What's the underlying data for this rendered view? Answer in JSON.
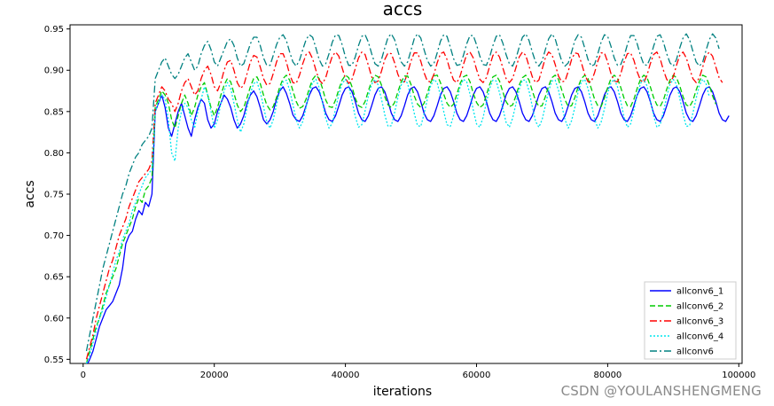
{
  "watermark": "CSDN @YOULANSHENGMENG",
  "chart_data": {
    "type": "line",
    "title": "accs",
    "xlabel": "iterations",
    "ylabel": "accs",
    "xlim": [
      -2000,
      100500
    ],
    "ylim": [
      0.545,
      0.955
    ],
    "xticks": [
      0,
      20000,
      40000,
      60000,
      80000,
      100000
    ],
    "yticks": [
      0.55,
      0.6,
      0.65,
      0.7,
      0.75,
      0.8,
      0.85,
      0.9,
      0.95
    ],
    "ytick_labels": [
      "0.55",
      "0.60",
      "0.65",
      "0.70",
      "0.75",
      "0.80",
      "0.85",
      "0.90",
      "0.95"
    ],
    "grid": false,
    "legend_position": "lower-right",
    "x_step": 500,
    "x_start": 500,
    "series": [
      {
        "name": "allconv6_1",
        "color": "#0000ff",
        "dash": "solid",
        "values": [
          0.542,
          0.55,
          0.56,
          0.575,
          0.59,
          0.6,
          0.61,
          0.615,
          0.62,
          0.63,
          0.64,
          0.66,
          0.69,
          0.7,
          0.705,
          0.72,
          0.73,
          0.725,
          0.74,
          0.735,
          0.75,
          0.85,
          0.86,
          0.87,
          0.855,
          0.83,
          0.82,
          0.835,
          0.85,
          0.86,
          0.845,
          0.83,
          0.82,
          0.84,
          0.855,
          0.865,
          0.86,
          0.84,
          0.83,
          0.835,
          0.85,
          0.86,
          0.87,
          0.865,
          0.855,
          0.84,
          0.83,
          0.835,
          0.845,
          0.86,
          0.87,
          0.875,
          0.868,
          0.855,
          0.84,
          0.835,
          0.84,
          0.85,
          0.865,
          0.875,
          0.88,
          0.872,
          0.86,
          0.846,
          0.84,
          0.838,
          0.845,
          0.857,
          0.87,
          0.878,
          0.88,
          0.874,
          0.862,
          0.848,
          0.84,
          0.838,
          0.845,
          0.857,
          0.87,
          0.878,
          0.88,
          0.874,
          0.862,
          0.848,
          0.84,
          0.838,
          0.845,
          0.857,
          0.87,
          0.878,
          0.88,
          0.874,
          0.862,
          0.848,
          0.84,
          0.838,
          0.845,
          0.857,
          0.87,
          0.878,
          0.88,
          0.874,
          0.862,
          0.848,
          0.84,
          0.838,
          0.845,
          0.857,
          0.87,
          0.878,
          0.88,
          0.874,
          0.862,
          0.848,
          0.84,
          0.838,
          0.845,
          0.857,
          0.87,
          0.878,
          0.88,
          0.874,
          0.862,
          0.848,
          0.84,
          0.838,
          0.845,
          0.857,
          0.87,
          0.878,
          0.88,
          0.874,
          0.862,
          0.848,
          0.84,
          0.838,
          0.845,
          0.857,
          0.87,
          0.878,
          0.88,
          0.874,
          0.862,
          0.848,
          0.84,
          0.838,
          0.845,
          0.857,
          0.87,
          0.878,
          0.88,
          0.874,
          0.862,
          0.848,
          0.84,
          0.838,
          0.845,
          0.857,
          0.87,
          0.878,
          0.88,
          0.874,
          0.862,
          0.848,
          0.84,
          0.838,
          0.845,
          0.857,
          0.87,
          0.878,
          0.88,
          0.874,
          0.862,
          0.848,
          0.84,
          0.838,
          0.845,
          0.857,
          0.87,
          0.878,
          0.88,
          0.874,
          0.862,
          0.848,
          0.84,
          0.838,
          0.845,
          0.857,
          0.87,
          0.878,
          0.88,
          0.874,
          0.862,
          0.848,
          0.84,
          0.838,
          0.845
        ]
      },
      {
        "name": "allconv6_2",
        "color": "#00cc00",
        "dash": "6,3",
        "values": [
          0.545,
          0.56,
          0.575,
          0.59,
          0.6,
          0.615,
          0.63,
          0.64,
          0.65,
          0.66,
          0.675,
          0.69,
          0.7,
          0.71,
          0.72,
          0.735,
          0.745,
          0.74,
          0.755,
          0.76,
          0.77,
          0.855,
          0.865,
          0.875,
          0.87,
          0.86,
          0.84,
          0.83,
          0.845,
          0.86,
          0.87,
          0.86,
          0.845,
          0.855,
          0.87,
          0.88,
          0.885,
          0.87,
          0.855,
          0.845,
          0.855,
          0.87,
          0.882,
          0.89,
          0.886,
          0.872,
          0.858,
          0.85,
          0.855,
          0.867,
          0.88,
          0.89,
          0.892,
          0.884,
          0.87,
          0.858,
          0.852,
          0.856,
          0.867,
          0.88,
          0.89,
          0.894,
          0.888,
          0.875,
          0.862,
          0.854,
          0.856,
          0.865,
          0.878,
          0.889,
          0.894,
          0.89,
          0.878,
          0.864,
          0.856,
          0.855,
          0.864,
          0.877,
          0.888,
          0.894,
          0.891,
          0.88,
          0.866,
          0.857,
          0.855,
          0.862,
          0.875,
          0.887,
          0.894,
          0.892,
          0.882,
          0.868,
          0.858,
          0.855,
          0.861,
          0.874,
          0.886,
          0.893,
          0.893,
          0.883,
          0.869,
          0.859,
          0.855,
          0.86,
          0.872,
          0.885,
          0.893,
          0.894,
          0.885,
          0.871,
          0.86,
          0.855,
          0.859,
          0.871,
          0.884,
          0.892,
          0.894,
          0.886,
          0.872,
          0.861,
          0.855,
          0.858,
          0.87,
          0.883,
          0.892,
          0.894,
          0.887,
          0.874,
          0.862,
          0.856,
          0.858,
          0.869,
          0.882,
          0.891,
          0.894,
          0.888,
          0.875,
          0.863,
          0.856,
          0.857,
          0.868,
          0.881,
          0.891,
          0.894,
          0.889,
          0.876,
          0.864,
          0.856,
          0.857,
          0.867,
          0.88,
          0.89,
          0.894,
          0.89,
          0.878,
          0.865,
          0.857,
          0.856,
          0.866,
          0.879,
          0.89,
          0.894,
          0.89,
          0.879,
          0.866,
          0.857,
          0.856,
          0.865,
          0.878,
          0.889,
          0.894,
          0.891,
          0.88,
          0.867,
          0.858,
          0.856,
          0.864,
          0.877,
          0.888,
          0.894,
          0.891,
          0.881,
          0.868,
          0.858,
          0.856,
          0.863,
          0.876,
          0.887,
          0.894,
          0.892,
          0.882,
          0.869,
          0.859
        ]
      },
      {
        "name": "allconv6_3",
        "color": "#ff0000",
        "dash": "8,3,2,3",
        "values": [
          0.55,
          0.565,
          0.58,
          0.6,
          0.615,
          0.63,
          0.645,
          0.66,
          0.67,
          0.685,
          0.7,
          0.71,
          0.72,
          0.735,
          0.745,
          0.755,
          0.765,
          0.77,
          0.775,
          0.78,
          0.79,
          0.86,
          0.87,
          0.88,
          0.875,
          0.865,
          0.86,
          0.85,
          0.86,
          0.875,
          0.885,
          0.89,
          0.88,
          0.87,
          0.875,
          0.89,
          0.9,
          0.905,
          0.895,
          0.88,
          0.875,
          0.885,
          0.9,
          0.91,
          0.912,
          0.9,
          0.885,
          0.878,
          0.882,
          0.896,
          0.91,
          0.918,
          0.916,
          0.904,
          0.89,
          0.882,
          0.884,
          0.896,
          0.91,
          0.92,
          0.92,
          0.91,
          0.895,
          0.885,
          0.884,
          0.894,
          0.908,
          0.919,
          0.922,
          0.914,
          0.9,
          0.888,
          0.884,
          0.891,
          0.905,
          0.917,
          0.922,
          0.917,
          0.903,
          0.89,
          0.884,
          0.889,
          0.902,
          0.915,
          0.922,
          0.919,
          0.906,
          0.892,
          0.885,
          0.887,
          0.899,
          0.913,
          0.921,
          0.92,
          0.909,
          0.895,
          0.886,
          0.886,
          0.897,
          0.911,
          0.921,
          0.921,
          0.911,
          0.897,
          0.887,
          0.886,
          0.895,
          0.909,
          0.92,
          0.922,
          0.913,
          0.899,
          0.888,
          0.885,
          0.893,
          0.907,
          0.919,
          0.922,
          0.915,
          0.901,
          0.889,
          0.885,
          0.891,
          0.905,
          0.918,
          0.922,
          0.916,
          0.903,
          0.89,
          0.885,
          0.89,
          0.903,
          0.916,
          0.922,
          0.918,
          0.905,
          0.892,
          0.885,
          0.888,
          0.901,
          0.915,
          0.922,
          0.919,
          0.907,
          0.893,
          0.886,
          0.887,
          0.899,
          0.913,
          0.921,
          0.92,
          0.909,
          0.895,
          0.886,
          0.886,
          0.897,
          0.911,
          0.921,
          0.921,
          0.91,
          0.896,
          0.887,
          0.886,
          0.896,
          0.91,
          0.92,
          0.921,
          0.912,
          0.898,
          0.888,
          0.885,
          0.894,
          0.908,
          0.919,
          0.922,
          0.914,
          0.9,
          0.889,
          0.885,
          0.892,
          0.906,
          0.918,
          0.922,
          0.915,
          0.902,
          0.89,
          0.885,
          0.891,
          0.904,
          0.917,
          0.922,
          0.917,
          0.904,
          0.891,
          0.885
        ]
      },
      {
        "name": "allconv6_4",
        "color": "#00e5ee",
        "dash": "2,2",
        "values": [
          0.545,
          0.555,
          0.57,
          0.585,
          0.6,
          0.61,
          0.625,
          0.64,
          0.655,
          0.67,
          0.68,
          0.695,
          0.705,
          0.715,
          0.73,
          0.74,
          0.75,
          0.76,
          0.77,
          0.775,
          0.78,
          0.85,
          0.86,
          0.87,
          0.865,
          0.84,
          0.8,
          0.79,
          0.83,
          0.85,
          0.86,
          0.855,
          0.84,
          0.83,
          0.85,
          0.865,
          0.88,
          0.87,
          0.85,
          0.83,
          0.84,
          0.86,
          0.875,
          0.885,
          0.878,
          0.86,
          0.84,
          0.825,
          0.835,
          0.855,
          0.872,
          0.884,
          0.886,
          0.874,
          0.856,
          0.838,
          0.83,
          0.84,
          0.858,
          0.875,
          0.886,
          0.888,
          0.876,
          0.858,
          0.84,
          0.83,
          0.838,
          0.855,
          0.873,
          0.885,
          0.889,
          0.879,
          0.861,
          0.842,
          0.83,
          0.836,
          0.853,
          0.871,
          0.884,
          0.889,
          0.881,
          0.863,
          0.844,
          0.831,
          0.834,
          0.851,
          0.869,
          0.883,
          0.889,
          0.882,
          0.865,
          0.846,
          0.832,
          0.833,
          0.849,
          0.867,
          0.882,
          0.889,
          0.884,
          0.867,
          0.848,
          0.833,
          0.832,
          0.847,
          0.865,
          0.881,
          0.889,
          0.885,
          0.869,
          0.85,
          0.834,
          0.832,
          0.845,
          0.863,
          0.88,
          0.889,
          0.886,
          0.871,
          0.852,
          0.835,
          0.831,
          0.843,
          0.861,
          0.878,
          0.888,
          0.887,
          0.873,
          0.854,
          0.837,
          0.831,
          0.842,
          0.859,
          0.877,
          0.888,
          0.888,
          0.875,
          0.856,
          0.838,
          0.831,
          0.84,
          0.857,
          0.875,
          0.887,
          0.888,
          0.876,
          0.858,
          0.84,
          0.83,
          0.839,
          0.855,
          0.874,
          0.886,
          0.889,
          0.878,
          0.86,
          0.841,
          0.83,
          0.837,
          0.853,
          0.872,
          0.885,
          0.889,
          0.88,
          0.862,
          0.843,
          0.831,
          0.835,
          0.852,
          0.87,
          0.884,
          0.889,
          0.881,
          0.864,
          0.845,
          0.831,
          0.834,
          0.85,
          0.868,
          0.883,
          0.889,
          0.883,
          0.866,
          0.847,
          0.832,
          0.833,
          0.848,
          0.866,
          0.882,
          0.889,
          0.884,
          0.868
        ]
      },
      {
        "name": "allconv6",
        "color": "#008080",
        "dash": "8,3,2,3",
        "values": [
          0.56,
          0.58,
          0.6,
          0.62,
          0.64,
          0.66,
          0.675,
          0.69,
          0.705,
          0.72,
          0.735,
          0.75,
          0.76,
          0.775,
          0.785,
          0.795,
          0.8,
          0.81,
          0.815,
          0.82,
          0.83,
          0.89,
          0.9,
          0.91,
          0.915,
          0.905,
          0.895,
          0.89,
          0.895,
          0.905,
          0.915,
          0.92,
          0.91,
          0.9,
          0.905,
          0.92,
          0.93,
          0.935,
          0.925,
          0.91,
          0.905,
          0.915,
          0.925,
          0.935,
          0.938,
          0.93,
          0.915,
          0.905,
          0.908,
          0.92,
          0.932,
          0.94,
          0.94,
          0.93,
          0.915,
          0.906,
          0.906,
          0.918,
          0.931,
          0.94,
          0.943,
          0.936,
          0.922,
          0.91,
          0.905,
          0.912,
          0.925,
          0.937,
          0.943,
          0.94,
          0.927,
          0.913,
          0.905,
          0.908,
          0.92,
          0.934,
          0.943,
          0.942,
          0.931,
          0.916,
          0.906,
          0.906,
          0.916,
          0.93,
          0.941,
          0.943,
          0.934,
          0.92,
          0.908,
          0.905,
          0.913,
          0.927,
          0.94,
          0.944,
          0.937,
          0.923,
          0.91,
          0.905,
          0.91,
          0.924,
          0.938,
          0.944,
          0.939,
          0.925,
          0.912,
          0.905,
          0.908,
          0.921,
          0.935,
          0.943,
          0.941,
          0.928,
          0.914,
          0.906,
          0.907,
          0.918,
          0.932,
          0.942,
          0.942,
          0.931,
          0.917,
          0.907,
          0.906,
          0.916,
          0.93,
          0.941,
          0.943,
          0.933,
          0.919,
          0.908,
          0.905,
          0.914,
          0.928,
          0.94,
          0.944,
          0.936,
          0.922,
          0.91,
          0.905,
          0.911,
          0.925,
          0.938,
          0.944,
          0.938,
          0.924,
          0.911,
          0.905,
          0.909,
          0.922,
          0.936,
          0.943,
          0.94,
          0.927,
          0.913,
          0.905,
          0.907,
          0.92,
          0.934,
          0.943,
          0.941,
          0.929,
          0.915,
          0.906,
          0.907,
          0.917,
          0.931,
          0.942,
          0.942,
          0.932,
          0.918,
          0.907,
          0.906,
          0.915,
          0.929,
          0.941,
          0.943,
          0.934,
          0.92,
          0.909,
          0.905,
          0.913,
          0.927,
          0.939,
          0.944,
          0.937,
          0.923,
          0.91,
          0.905,
          0.91,
          0.924,
          0.937,
          0.944,
          0.939,
          0.926
        ]
      }
    ]
  }
}
